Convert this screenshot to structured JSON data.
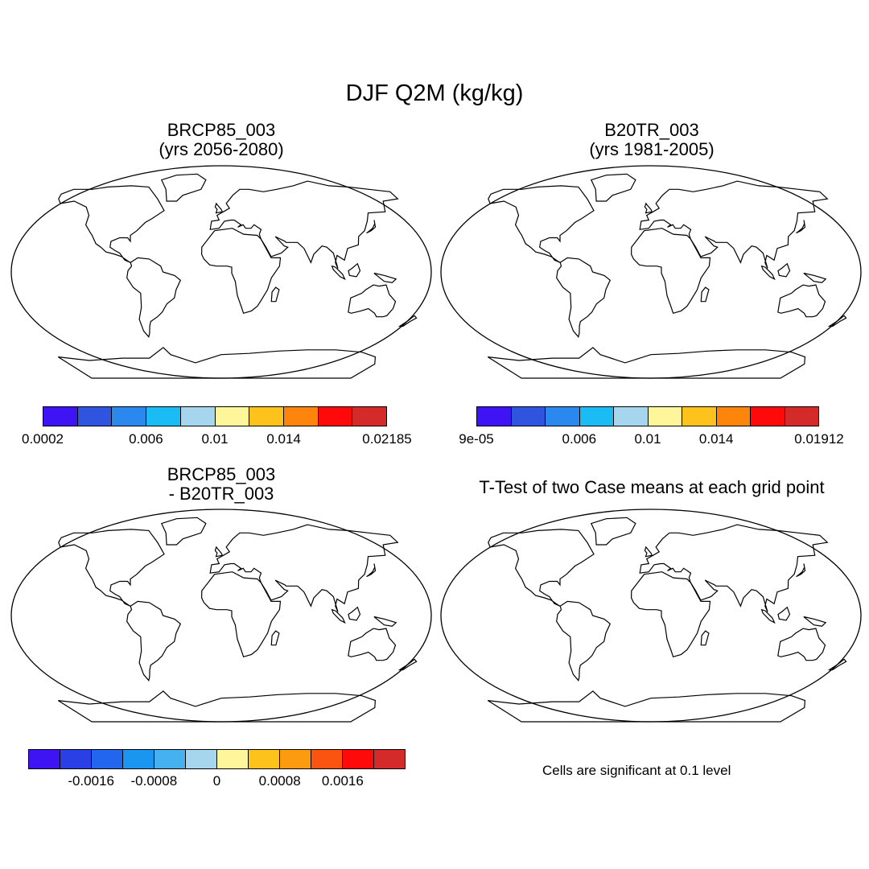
{
  "figure": {
    "title": "DJF Q2M (kg/kg)"
  },
  "panels": [
    {
      "id": "future",
      "title_line1": "BRCP85_003",
      "title_line2": "(yrs 2056-2080)",
      "colorbar": {
        "colors": [
          "#3e14f4",
          "#2f55e0",
          "#2b88ee",
          "#1bbcf5",
          "#a5d6ee",
          "#fff59a",
          "#fec21c",
          "#fd850b",
          "#ff0a0a",
          "#d42a2a"
        ],
        "tick_labels": [
          "0.0002",
          "0.006",
          "0.01",
          "0.014",
          "0.02185"
        ],
        "tick_boundaries": [
          0,
          3,
          5,
          7,
          10
        ]
      }
    },
    {
      "id": "historical",
      "title_line1": "B20TR_003",
      "title_line2": "(yrs 1981-2005)",
      "colorbar": {
        "colors": [
          "#3e14f4",
          "#2f55e0",
          "#2b88ee",
          "#1bbcf5",
          "#a5d6ee",
          "#fff59a",
          "#fec21c",
          "#fd850b",
          "#ff0a0a",
          "#d42a2a"
        ],
        "tick_labels": [
          "9e-05",
          "0.006",
          "0.01",
          "0.014",
          "0.01912"
        ],
        "tick_boundaries": [
          0,
          3,
          5,
          7,
          10
        ]
      }
    },
    {
      "id": "difference",
      "title_line1": "BRCP85_003",
      "title_line2": "- B20TR_003",
      "colorbar": {
        "colors": [
          "#3e14f4",
          "#2a40e6",
          "#2366ee",
          "#1a96f0",
          "#45b2ef",
          "#a5d6ee",
          "#fff59a",
          "#fec21c",
          "#fc9b10",
          "#fb5410",
          "#ff0a0a",
          "#d42a2a"
        ],
        "tick_labels": [
          "-0.0016",
          "-0.0008",
          "0",
          "0.0008",
          "0.0016"
        ],
        "tick_boundaries": [
          2,
          4,
          6,
          8,
          10
        ]
      }
    },
    {
      "id": "ttest",
      "title_line1": "T-Test of two Case means at each grid point",
      "note": "Cells are significant at 0.1 level"
    }
  ]
}
